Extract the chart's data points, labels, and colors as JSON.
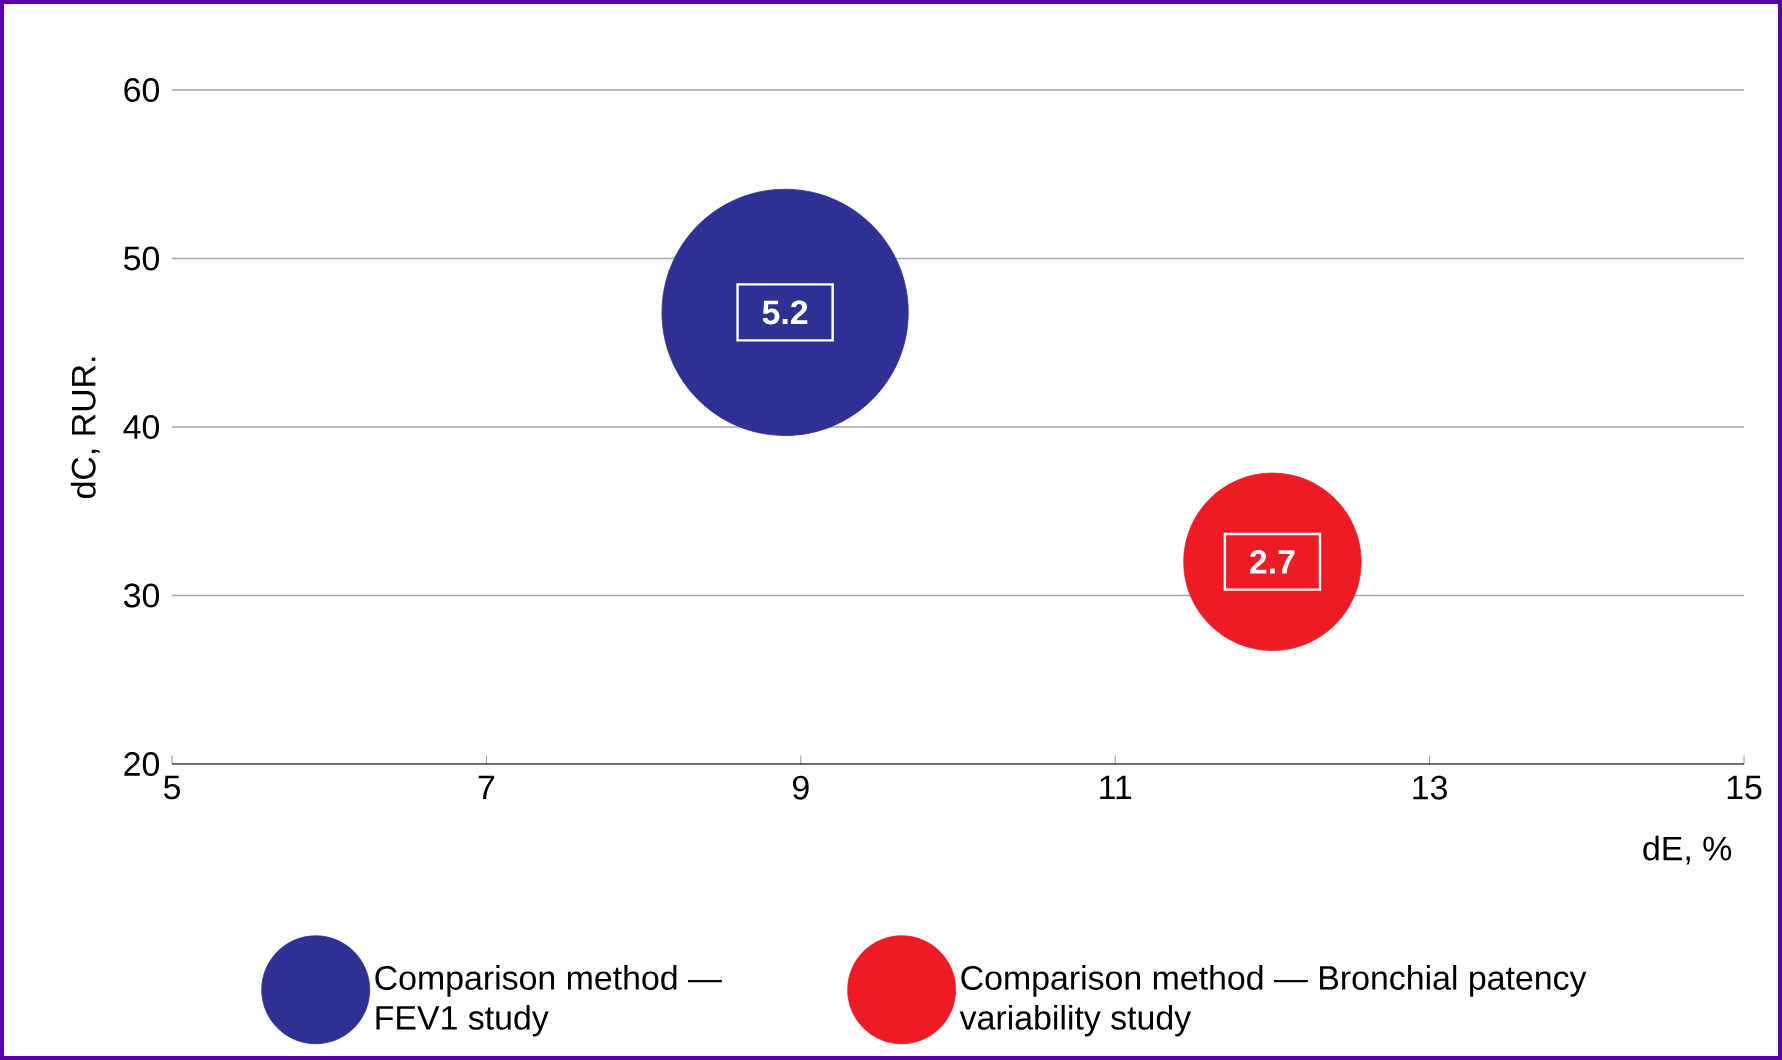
{
  "chart_data": {
    "type": "bubble",
    "xlabel": "dE, %",
    "ylabel": "dC, RUR.",
    "xlim": [
      5,
      15
    ],
    "xticks": [
      5,
      7,
      9,
      11,
      13,
      15
    ],
    "ylim": [
      20,
      60
    ],
    "yticks": [
      20,
      30,
      40,
      50,
      60
    ],
    "grid": "y",
    "legend": "bottom",
    "series": [
      {
        "name": "Comparison method — FEV1 study",
        "color": "#2e3192",
        "x": [
          8.9
        ],
        "values": [
          46.8
        ],
        "sizes": [
          5.2
        ],
        "value_labels": [
          "5.2"
        ]
      },
      {
        "name": "Comparison method — Bronchial patency variability study",
        "color": "#ed1c24",
        "x": [
          12
        ],
        "values": [
          32
        ],
        "sizes": [
          2.7
        ],
        "value_labels": [
          "2.7"
        ]
      }
    ]
  }
}
